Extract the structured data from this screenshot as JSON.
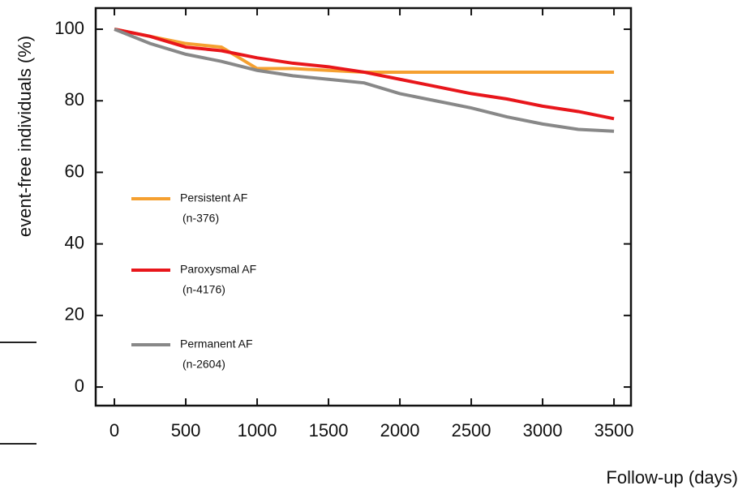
{
  "chart_data": {
    "type": "line",
    "y_label": "event-free individuals (%)",
    "x_label": "Follow-up (days)",
    "x": [
      0,
      250,
      500,
      750,
      1000,
      1250,
      1500,
      1750,
      2000,
      2250,
      2500,
      2750,
      3000,
      3250,
      3500
    ],
    "series": [
      {
        "name": "Persistent AF",
        "n_label": "(n-376)",
        "color": "#f5a030",
        "values": [
          100,
          98,
          96,
          95,
          89,
          89,
          88.5,
          88,
          88,
          88,
          88,
          88,
          88,
          88,
          88
        ]
      },
      {
        "name": "Paroxysmal AF",
        "n_label": "(n-4176)",
        "color": "#e8161b",
        "values": [
          100,
          98,
          95,
          94,
          92,
          90.5,
          89.5,
          88,
          86,
          84,
          82,
          80.5,
          78.5,
          77,
          75
        ]
      },
      {
        "name": "Permanent AF",
        "n_label": "(n-2604)",
        "color": "#888888",
        "values": [
          100,
          96,
          93,
          91,
          88.5,
          87,
          86,
          85,
          82,
          80,
          78,
          75.5,
          73.5,
          72,
          71.5
        ]
      }
    ],
    "xlim": [
      -131,
      3619
    ],
    "ylim": [
      -5.2,
      105.9
    ],
    "xticks": [
      0,
      500,
      1000,
      1500,
      2000,
      2500,
      3000,
      3500
    ],
    "yticks": [
      0,
      20,
      40,
      60,
      80,
      100
    ]
  }
}
